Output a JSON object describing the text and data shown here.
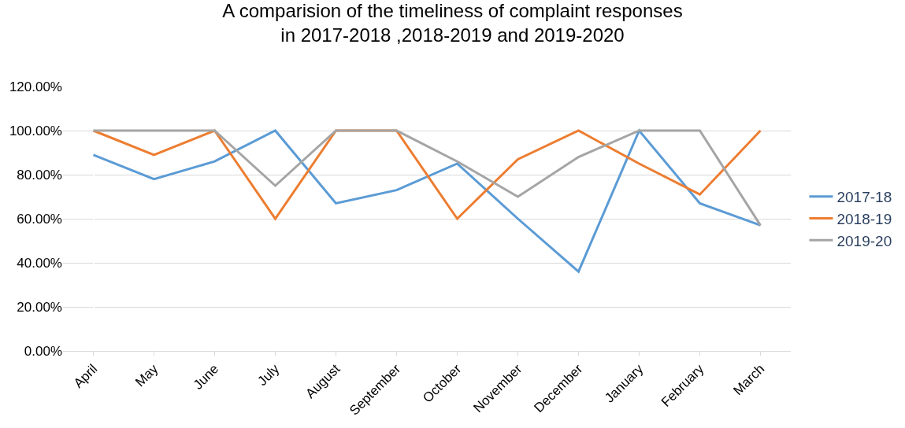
{
  "chart_data": {
    "type": "line",
    "title": "A comparision of the timeliness of complaint responses\nin 2017-2018 ,2018-2019 and 2019-2020",
    "categories": [
      "April",
      "May",
      "June",
      "July",
      "August",
      "September",
      "October",
      "November",
      "December",
      "January",
      "February",
      "March"
    ],
    "series": [
      {
        "name": "2017-18",
        "color": "#5b9bd5",
        "values": [
          89,
          78,
          86,
          100,
          67,
          73,
          85,
          60,
          36,
          100,
          67,
          57
        ]
      },
      {
        "name": "2018-19",
        "color": "#ed7d31",
        "values": [
          100,
          89,
          100,
          60,
          100,
          100,
          60,
          87,
          100,
          85,
          71,
          100
        ]
      },
      {
        "name": "2019-20",
        "color": "#a5a5a5",
        "values": [
          100,
          100,
          100,
          75,
          100,
          100,
          86,
          70,
          88,
          100,
          100,
          57
        ]
      }
    ],
    "ylim": [
      0,
      120
    ],
    "yticks": [
      {
        "value": 0,
        "label": "0.00%"
      },
      {
        "value": 20,
        "label": "20.00%"
      },
      {
        "value": 40,
        "label": "40.00%"
      },
      {
        "value": 60,
        "label": "60.00%"
      },
      {
        "value": 80,
        "label": "80.00%"
      },
      {
        "value": 100,
        "label": "100.00%"
      },
      {
        "value": 120,
        "label": "120.00%"
      }
    ],
    "grid": "y",
    "legend": "right",
    "marker": "none",
    "line_style": "solid"
  }
}
